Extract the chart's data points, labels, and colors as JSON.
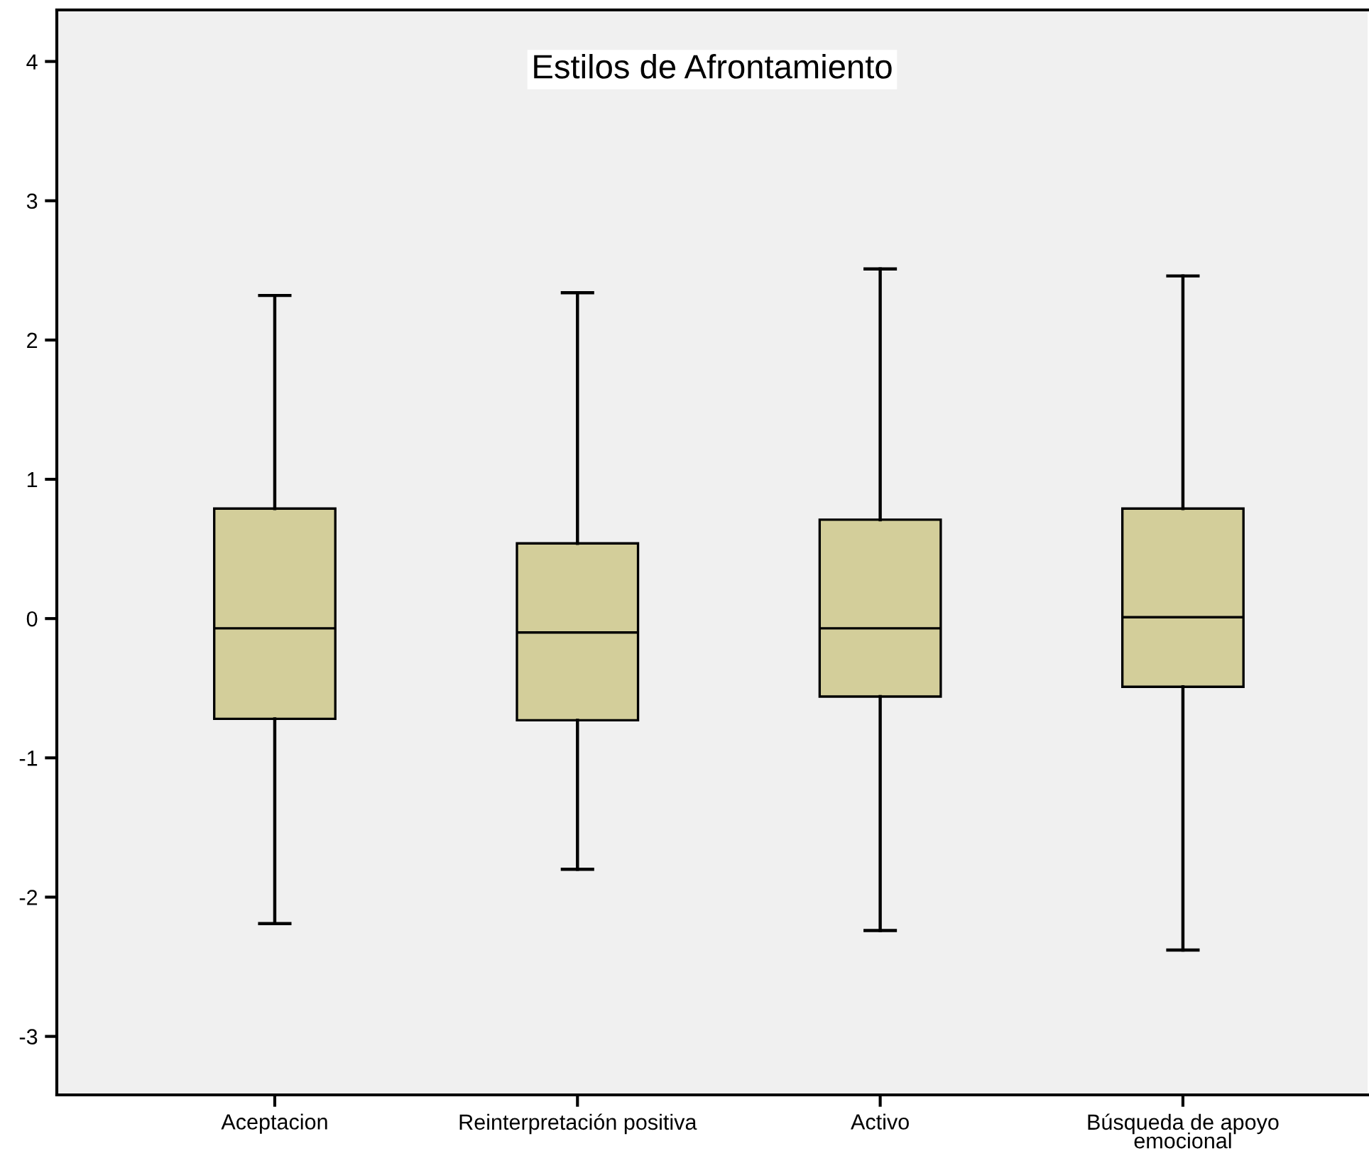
{
  "chart_data": {
    "type": "box",
    "title": "Estilos de Afrontamiento",
    "categories": [
      "Aceptacion",
      "Reinterpretación positiva",
      "Activo",
      "Búsqueda de apoyo\nemocional"
    ],
    "color": "#d3ce9a",
    "boxes": [
      {
        "low": -2.19,
        "q1": -0.72,
        "median": -0.07,
        "q3": 0.79,
        "high": 2.32
      },
      {
        "low": -1.8,
        "q1": -0.73,
        "median": -0.1,
        "q3": 0.54,
        "high": 2.34
      },
      {
        "low": -2.24,
        "q1": -0.56,
        "median": -0.07,
        "q3": 0.71,
        "high": 2.51
      },
      {
        "low": -2.38,
        "q1": -0.49,
        "median": 0.01,
        "q3": 0.79,
        "high": 2.46
      }
    ],
    "ylim": [
      -3.42,
      4.37
    ],
    "yticks": [
      -3,
      -2,
      -1,
      0,
      1,
      2,
      3,
      4
    ],
    "grid": false
  }
}
